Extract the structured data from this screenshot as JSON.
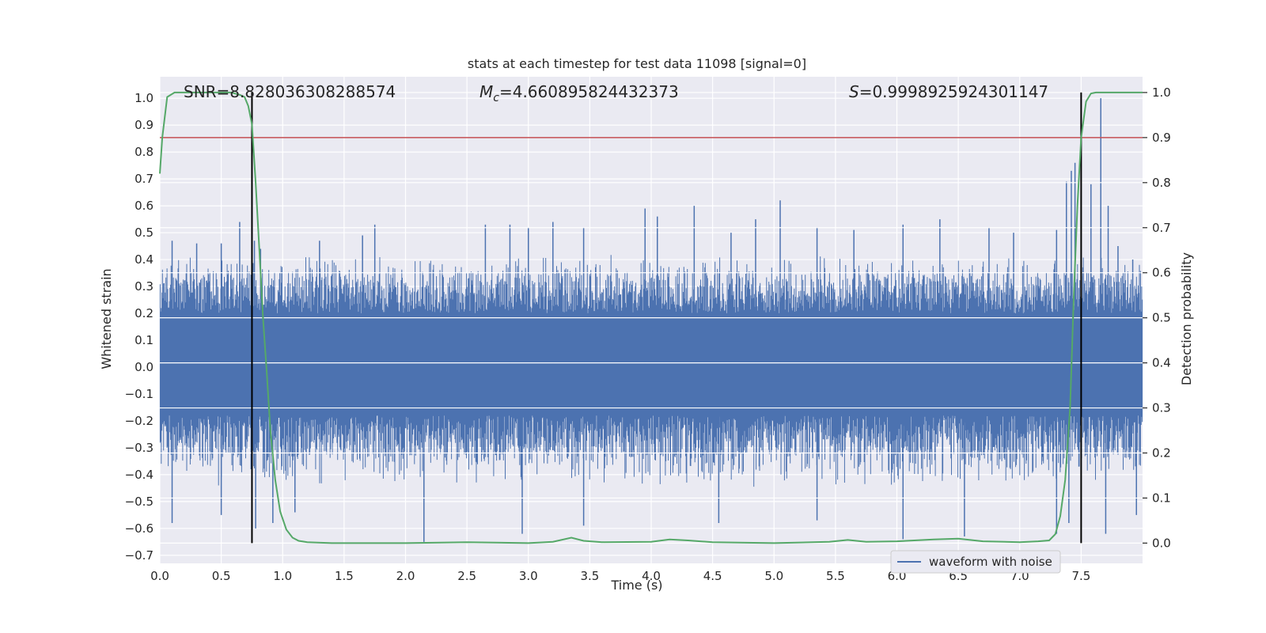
{
  "chart_data": {
    "type": "line",
    "title": "stats at each timestep for test data 11098 [signal=0]",
    "xlabel": "Time (s)",
    "ylabel_left": "Whitened strain",
    "ylabel_right": "Detection probability",
    "xlim": [
      0.0,
      8.0
    ],
    "ylim_left": [
      -0.73,
      1.08
    ],
    "ylim_right": [
      -0.045,
      1.035
    ],
    "x_ticks": [
      0.0,
      0.5,
      1.0,
      1.5,
      2.0,
      2.5,
      3.0,
      3.5,
      4.0,
      4.5,
      5.0,
      5.5,
      6.0,
      6.5,
      7.0,
      7.5
    ],
    "x_tick_labels": [
      "0.0",
      "0.5",
      "1.0",
      "1.5",
      "2.0",
      "2.5",
      "3.0",
      "3.5",
      "4.0",
      "4.5",
      "5.0",
      "5.5",
      "6.0",
      "6.5",
      "7.0",
      "7.5"
    ],
    "y_left_ticks": [
      1.0,
      0.9,
      0.8,
      0.7,
      0.6,
      0.5,
      0.4,
      0.3,
      0.2,
      0.1,
      0.0,
      -0.1,
      -0.2,
      -0.3,
      -0.4,
      -0.5,
      -0.6,
      -0.7
    ],
    "y_left_tick_labels": [
      "1.0",
      "0.9",
      "0.8",
      "0.7",
      "0.6",
      "0.5",
      "0.4",
      "0.3",
      "0.2",
      "0.1",
      "0.0",
      "−0.1",
      "−0.2",
      "−0.3",
      "−0.4",
      "−0.5",
      "−0.6",
      "−0.7"
    ],
    "y_right_ticks": [
      1.0,
      0.9,
      0.8,
      0.7,
      0.6,
      0.5,
      0.4,
      0.3,
      0.2,
      0.1,
      0.0
    ],
    "y_right_tick_labels": [
      "1.0",
      "0.9",
      "0.8",
      "0.7",
      "0.6",
      "0.5",
      "0.4",
      "0.3",
      "0.2",
      "0.1",
      "0.0"
    ],
    "annotations": {
      "snr": "SNR=8.828036308288574",
      "mc_symbol": "M",
      "mc_subscript": "c",
      "mc_value": "=4.660895824432373",
      "s_symbol": "S",
      "s_value": "=0.9998925924301147"
    },
    "legend": {
      "label": "waveform with noise",
      "position": "lower-right"
    },
    "noise_band": {
      "core_min": -0.15,
      "core_max": 0.17,
      "typical_peak": 0.42,
      "typical_trough": -0.45
    },
    "waveform_spikes": [
      [
        0.1,
        0.47
      ],
      [
        0.3,
        0.46
      ],
      [
        0.5,
        0.46
      ],
      [
        0.65,
        0.54
      ],
      [
        0.77,
        0.47
      ],
      [
        0.82,
        0.44
      ],
      [
        1.3,
        0.47
      ],
      [
        1.65,
        0.49
      ],
      [
        1.75,
        0.53
      ],
      [
        2.65,
        0.53
      ],
      [
        2.85,
        0.53
      ],
      [
        3.0,
        0.52
      ],
      [
        3.2,
        0.54
      ],
      [
        3.45,
        0.52
      ],
      [
        3.95,
        0.59
      ],
      [
        4.05,
        0.56
      ],
      [
        4.35,
        0.6
      ],
      [
        4.65,
        0.5
      ],
      [
        4.85,
        0.55
      ],
      [
        5.05,
        0.62
      ],
      [
        5.35,
        0.52
      ],
      [
        5.65,
        0.51
      ],
      [
        6.05,
        0.53
      ],
      [
        6.35,
        0.55
      ],
      [
        6.75,
        0.52
      ],
      [
        6.95,
        0.5
      ],
      [
        7.3,
        0.51
      ],
      [
        7.38,
        0.69
      ],
      [
        7.42,
        0.73
      ],
      [
        7.45,
        0.76
      ],
      [
        7.58,
        0.68
      ],
      [
        7.66,
        1.0
      ],
      [
        7.72,
        0.6
      ],
      [
        7.8,
        0.45
      ],
      [
        7.92,
        0.4
      ]
    ],
    "waveform_troughs": [
      [
        0.1,
        -0.58
      ],
      [
        0.5,
        -0.55
      ],
      [
        0.78,
        -0.6
      ],
      [
        0.92,
        -0.58
      ],
      [
        1.1,
        -0.54
      ],
      [
        2.15,
        -0.65
      ],
      [
        2.95,
        -0.62
      ],
      [
        3.45,
        -0.59
      ],
      [
        4.55,
        -0.58
      ],
      [
        5.35,
        -0.57
      ],
      [
        6.05,
        -0.64
      ],
      [
        6.55,
        -0.63
      ],
      [
        7.3,
        -0.62
      ],
      [
        7.4,
        -0.58
      ],
      [
        7.7,
        -0.62
      ],
      [
        7.95,
        -0.55
      ]
    ],
    "series": [
      {
        "name": "detection probability",
        "axis": "right",
        "color": "#55a868",
        "x": [
          0.0,
          0.02,
          0.06,
          0.12,
          0.2,
          0.3,
          0.4,
          0.5,
          0.58,
          0.65,
          0.69,
          0.72,
          0.75,
          0.78,
          0.81,
          0.84,
          0.87,
          0.9,
          0.94,
          0.98,
          1.03,
          1.08,
          1.13,
          1.2,
          1.4,
          2.0,
          2.5,
          3.0,
          3.2,
          3.35,
          3.45,
          3.6,
          4.0,
          4.15,
          4.3,
          4.5,
          5.0,
          5.45,
          5.6,
          5.75,
          6.0,
          6.3,
          6.5,
          6.7,
          7.0,
          7.15,
          7.24,
          7.29,
          7.33,
          7.37,
          7.41,
          7.44,
          7.47,
          7.5,
          7.54,
          7.58,
          7.62,
          7.7,
          8.0
        ],
        "y": [
          0.82,
          0.9,
          0.99,
          1.0,
          1.0,
          1.0,
          1.0,
          1.0,
          1.0,
          0.995,
          0.99,
          0.97,
          0.93,
          0.8,
          0.65,
          0.5,
          0.38,
          0.25,
          0.14,
          0.07,
          0.03,
          0.012,
          0.005,
          0.002,
          0.0,
          0.0,
          0.002,
          0.0,
          0.003,
          0.012,
          0.005,
          0.002,
          0.003,
          0.008,
          0.006,
          0.002,
          0.0,
          0.003,
          0.007,
          0.003,
          0.004,
          0.008,
          0.01,
          0.004,
          0.002,
          0.004,
          0.006,
          0.02,
          0.06,
          0.14,
          0.3,
          0.55,
          0.75,
          0.9,
          0.98,
          0.998,
          1.0,
          1.0,
          1.0
        ]
      }
    ],
    "threshold": {
      "value": 0.9,
      "axis": "right",
      "color": "#c44e52"
    },
    "vlines": [
      0.75,
      7.5
    ],
    "colors": {
      "waveform": "#4c72b0",
      "background": "#eaeaf2",
      "grid": "#ffffff",
      "vline": "#000000"
    }
  }
}
